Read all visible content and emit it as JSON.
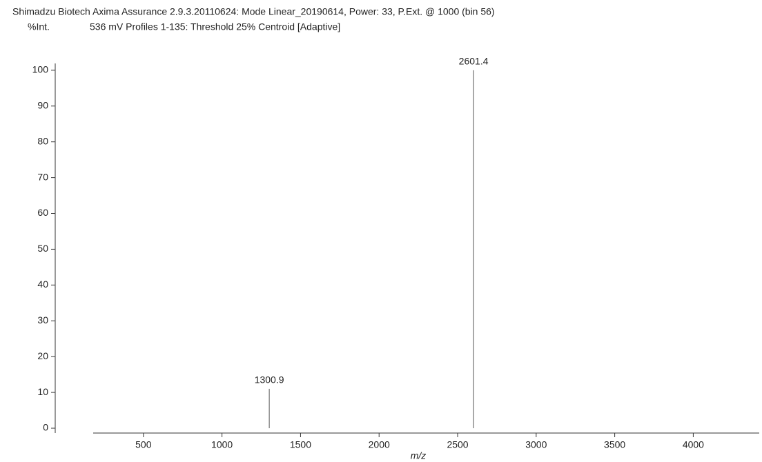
{
  "chart_data": {
    "type": "stem",
    "title": "Shimadzu Biotech Axima Assurance 2.9.3.20110624: Mode Linear_20190614, Power: 33, P.Ext. @ 1000 (bin 56)",
    "subtitle": "536 mV  Profiles 1-135: Threshold 25% Centroid [Adaptive]",
    "ylabel": "%Int.",
    "xlabel": "m/z",
    "x": [
      1300.9,
      2601.4
    ],
    "values": [
      11,
      100
    ],
    "color": "#555555",
    "xlim": [
      180,
      4420
    ],
    "xticks": [
      500,
      1000,
      1500,
      2000,
      2500,
      3000,
      3500,
      4000
    ],
    "ylim": [
      -1.35,
      101.9
    ],
    "yticks": [
      0,
      10,
      20,
      30,
      40,
      50,
      60,
      70,
      80,
      90,
      100
    ]
  }
}
